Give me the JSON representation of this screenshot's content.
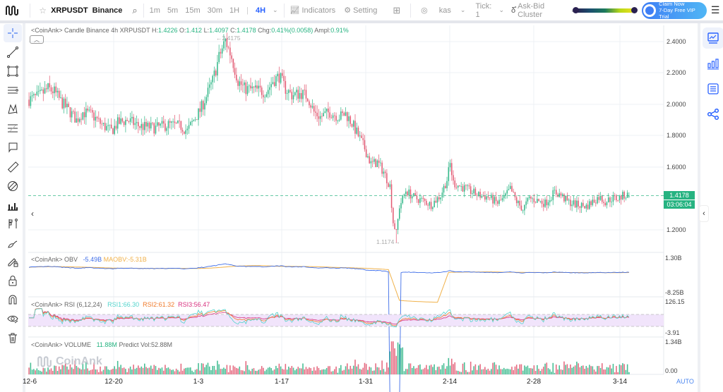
{
  "toolbar": {
    "symbol": "XRPUSDT",
    "exchange": "Binance",
    "timeframes": [
      "1m",
      "5m",
      "15m",
      "30m",
      "1H"
    ],
    "active_timeframe": "4H",
    "indicators_label": "Indicators",
    "setting_label": "Setting",
    "kas_label": "kas",
    "tick_label": "Tick: 1",
    "cluster_label": "Ask-Bid Cluster",
    "claim_line1": "Claim Now",
    "claim_line2": "7-Day Free VIP Trial"
  },
  "left_tools": [
    "crosshair-icon",
    "trend-line-icon",
    "rectangle-icon",
    "parallel-channel-icon",
    "pattern-icon",
    "fib-retracement-icon",
    "callout-icon",
    "ruler-icon",
    "measure-icon",
    "volume-profile-icon",
    "long-short-icon",
    "brush-icon",
    "lock-drawings-icon",
    "lock-icon",
    "magnet-icon",
    "hide-icon",
    "trash-icon"
  ],
  "right_tools": [
    "chart-icon",
    "bar-chart-icon",
    "list-icon",
    "share-icon"
  ],
  "main_legend": {
    "prefix": "<CoinAnk> Candle  Binance 4h XRPUSDT",
    "h_label": "H:",
    "h": "1.4226",
    "o_label": "O:",
    "o": "1.412",
    "l_label": "L:",
    "l": "1.4097",
    "c_label": "C:",
    "c": "1.4178",
    "chg_label": "Chg:",
    "chg": "0.41%(0.0058)",
    "ampl_label": "Ampl:",
    "ampl": "0.91%"
  },
  "obv_legend": {
    "prefix": "<CoinAnk> OBV",
    "obv": "-5.49B",
    "maobv": "MAOBV:-5.31B"
  },
  "rsi_legend": {
    "prefix": "<CoinAnk> RSI  (6,12,24)",
    "rsi1": "RSI1:66.30",
    "rsi2": "RSI2:61.32",
    "rsi3": "RSI3:56.47"
  },
  "vol_legend": {
    "prefix": "<CoinAnk> VOLUME",
    "vol": "11.88M",
    "predict": "Predict Vol:52.88M"
  },
  "current_price": "1.4178",
  "countdown": "03:06:04",
  "high_annot": "←2.4175",
  "low_annot": "1.1174→",
  "watermark": "CoinAnk",
  "auto_label": "AUTO",
  "colors": {
    "up": "#26b381",
    "down": "#e0506a",
    "obv": "#3f6ee8",
    "maobv": "#f0b14a",
    "rsi1": "#53d4cc",
    "rsi2": "#f07a2b",
    "rsi3": "#d8317f"
  },
  "chart_data": {
    "type": "candlestick",
    "title": "<CoinAnk> Candle Binance 4h XRPUSDT",
    "x_ticks": [
      "12-6",
      "12-20",
      "1-3",
      "1-17",
      "1-31",
      "2-14",
      "2-28",
      "3-14"
    ],
    "price_axis": {
      "ticks": [
        2.4,
        2.2,
        2.0,
        1.8,
        1.6,
        1.2
      ],
      "range": [
        1.05,
        2.48
      ]
    },
    "obv_axis": {
      "ticks": [
        "1.30B",
        "-8.25B"
      ]
    },
    "rsi_axis": {
      "ticks": [
        "126.15",
        "-3.91"
      ]
    },
    "volume_axis": {
      "ticks": [
        "1.34B",
        "0.00"
      ]
    },
    "price_path": [
      [
        0,
        2.03
      ],
      [
        6,
        2.05
      ],
      [
        12,
        2.1
      ],
      [
        16,
        2.08
      ],
      [
        20,
        2.02
      ],
      [
        26,
        1.95
      ],
      [
        30,
        1.9
      ],
      [
        34,
        1.95
      ],
      [
        40,
        1.93
      ],
      [
        46,
        1.87
      ],
      [
        52,
        1.83
      ],
      [
        56,
        1.88
      ],
      [
        62,
        1.9
      ],
      [
        70,
        1.86
      ],
      [
        80,
        1.85
      ],
      [
        88,
        1.87
      ],
      [
        96,
        1.86
      ],
      [
        100,
        1.83
      ],
      [
        104,
        1.9
      ],
      [
        108,
        1.96
      ],
      [
        112,
        2.05
      ],
      [
        116,
        2.15
      ],
      [
        120,
        2.3
      ],
      [
        124,
        2.41
      ],
      [
        128,
        2.3
      ],
      [
        132,
        2.15
      ],
      [
        136,
        2.1
      ],
      [
        144,
        2.09
      ],
      [
        150,
        2.08
      ],
      [
        154,
        2.15
      ],
      [
        158,
        2.18
      ],
      [
        162,
        2.1
      ],
      [
        166,
        2.06
      ],
      [
        172,
        2.07
      ],
      [
        176,
        2.05
      ],
      [
        180,
        1.95
      ],
      [
        184,
        1.92
      ],
      [
        190,
        1.95
      ],
      [
        196,
        1.92
      ],
      [
        200,
        1.94
      ],
      [
        204,
        1.88
      ],
      [
        208,
        1.8
      ],
      [
        212,
        1.72
      ],
      [
        216,
        1.62
      ],
      [
        220,
        1.63
      ],
      [
        224,
        1.57
      ],
      [
        228,
        1.48
      ],
      [
        230,
        1.25
      ],
      [
        232,
        1.18
      ],
      [
        234,
        1.35
      ],
      [
        238,
        1.45
      ],
      [
        244,
        1.4
      ],
      [
        248,
        1.39
      ],
      [
        254,
        1.36
      ],
      [
        260,
        1.42
      ],
      [
        264,
        1.52
      ],
      [
        266,
        1.62
      ],
      [
        268,
        1.5
      ],
      [
        272,
        1.48
      ],
      [
        278,
        1.45
      ],
      [
        284,
        1.42
      ],
      [
        290,
        1.41
      ],
      [
        296,
        1.37
      ],
      [
        300,
        1.4
      ],
      [
        304,
        1.46
      ],
      [
        308,
        1.38
      ],
      [
        312,
        1.33
      ],
      [
        316,
        1.4
      ],
      [
        320,
        1.39
      ],
      [
        326,
        1.37
      ],
      [
        332,
        1.44
      ],
      [
        336,
        1.42
      ],
      [
        340,
        1.38
      ],
      [
        346,
        1.36
      ],
      [
        352,
        1.35
      ],
      [
        356,
        1.38
      ],
      [
        360,
        1.41
      ],
      [
        364,
        1.38
      ],
      [
        368,
        1.4
      ],
      [
        372,
        1.4
      ],
      [
        376,
        1.42
      ]
    ],
    "current": {
      "open": 1.412,
      "high": 1.4226,
      "low": 1.4097,
      "close": 1.4178
    },
    "period_high": 2.4175,
    "period_low": 1.1174
  }
}
